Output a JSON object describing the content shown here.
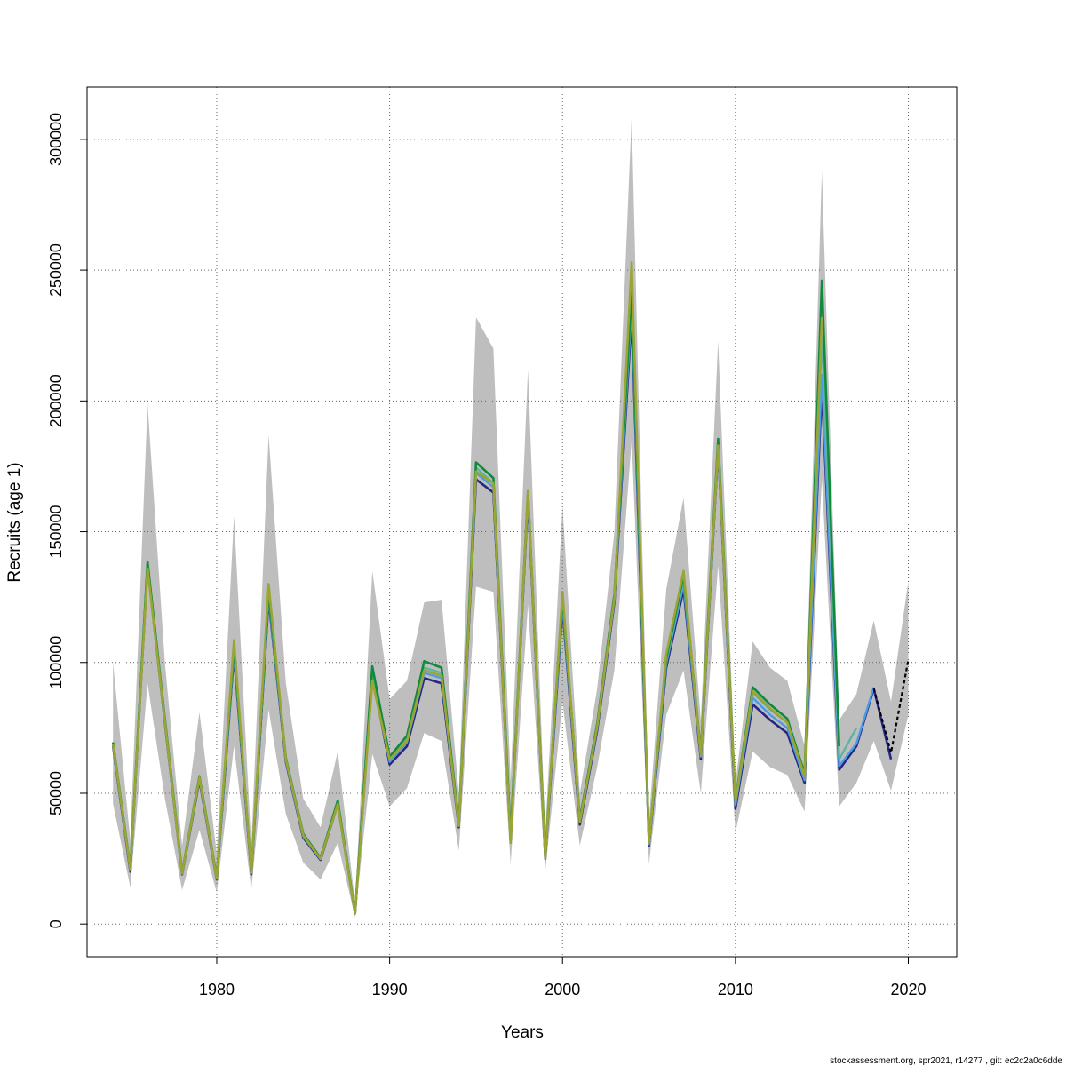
{
  "chart_data": {
    "type": "line",
    "xlabel": "Years",
    "ylabel": "Recruits (age 1)",
    "xlim": [
      1972.5,
      2022.8
    ],
    "ylim": [
      -12500,
      320000
    ],
    "x_ticks": [
      1980,
      1990,
      2000,
      2010,
      2020
    ],
    "x_tick_labels": [
      "1980",
      "1990",
      "2000",
      "2010",
      "2020"
    ],
    "y_ticks": [
      0,
      50000,
      100000,
      150000,
      200000,
      250000,
      300000
    ],
    "y_tick_labels": [
      "0",
      "50000",
      "100000",
      "150000",
      "200000",
      "250000",
      "300000"
    ],
    "grid": true,
    "legend": "none",
    "colors": {
      "band": "#bebebe",
      "grid": "#666666",
      "axis": "#000000",
      "series": [
        "#27277f",
        "#4d9be6",
        "#5fb3a0",
        "#128a3c",
        "#9aa534",
        "#000000"
      ]
    },
    "confidence_band": {
      "x": [
        1974,
        1975,
        1976,
        1977,
        1978,
        1979,
        1980,
        1981,
        1982,
        1983,
        1984,
        1985,
        1986,
        1987,
        1988,
        1989,
        1990,
        1991,
        1992,
        1993,
        1994,
        1995,
        1996,
        1997,
        1998,
        1999,
        2000,
        2001,
        2002,
        2003,
        2004,
        2005,
        2006,
        2007,
        2008,
        2009,
        2010,
        2011,
        2012,
        2013,
        2014,
        2015,
        2016,
        2017,
        2018,
        2019,
        2020
      ],
      "lower": [
        46000,
        14000,
        92000,
        48000,
        13000,
        36000,
        12000,
        68000,
        13000,
        82000,
        42000,
        23500,
        17000,
        31000,
        2500,
        65000,
        45000,
        52000,
        73000,
        70000,
        28000,
        129000,
        127000,
        23000,
        122000,
        20000,
        85000,
        30000,
        60000,
        97000,
        185000,
        23000,
        80000,
        97000,
        50000,
        137000,
        35000,
        66000,
        60000,
        57000,
        43000,
        170000,
        45000,
        54000,
        70000,
        51000,
        80000
      ],
      "upper": [
        100000,
        32000,
        199000,
        100000,
        30000,
        81000,
        27000,
        156000,
        30000,
        187000,
        92000,
        48000,
        37000,
        66000,
        8000,
        135000,
        86000,
        93000,
        123000,
        124000,
        50000,
        232000,
        220000,
        55000,
        212000,
        35000,
        160000,
        50000,
        90000,
        150000,
        309000,
        40000,
        128000,
        163000,
        78000,
        223000,
        54000,
        108000,
        98000,
        93000,
        68000,
        288000,
        78000,
        88000,
        116000,
        85000,
        131000
      ]
    },
    "series": [
      {
        "x": [
          1974,
          1975,
          1976,
          1977,
          1978,
          1979,
          1980,
          1981,
          1982,
          1983,
          1984,
          1985,
          1986,
          1987,
          1988,
          1989,
          1990,
          1991,
          1992,
          1993,
          1994,
          1995,
          1996,
          1997,
          1998,
          1999,
          2000,
          2001,
          2002,
          2003,
          2004,
          2005,
          2006,
          2007,
          2008,
          2009,
          2010,
          2011,
          2012,
          2013,
          2014,
          2015,
          2016,
          2017,
          2018,
          2019
        ],
        "values": [
          68000,
          20000,
          137000,
          77000,
          19000,
          55000,
          17000,
          103000,
          19000,
          124000,
          62000,
          33000,
          24500,
          46000,
          4000,
          95000,
          61000,
          68000,
          94000,
          92000,
          37000,
          170000,
          165000,
          32000,
          163000,
          25000,
          121000,
          38000,
          74000,
          123000,
          232000,
          30000,
          98000,
          128000,
          63000,
          182000,
          44000,
          84000,
          78000,
          73000,
          54000,
          205000,
          59000,
          68000,
          90000,
          63000
        ],
        "color": "#27277f",
        "width": 2.6,
        "dash": ""
      },
      {
        "x": [
          1974,
          1975,
          1976,
          1977,
          1978,
          1979,
          1980,
          1981,
          1982,
          1983,
          1984,
          1985,
          1986,
          1987,
          1988,
          1989,
          1990,
          1991,
          1992,
          1993,
          1994,
          1995,
          1996,
          1997,
          1998,
          1999,
          2000,
          2001,
          2002,
          2003,
          2004,
          2005,
          2006,
          2007,
          2008,
          2009,
          2010,
          2011,
          2012,
          2013,
          2014,
          2015,
          2016,
          2017,
          2018
        ],
        "values": [
          68500,
          20500,
          137500,
          77500,
          19200,
          55500,
          17300,
          104000,
          19400,
          125000,
          62500,
          33500,
          24800,
          46500,
          4100,
          96500,
          62000,
          69500,
          96000,
          94000,
          37500,
          172500,
          167000,
          32500,
          164000,
          25500,
          122500,
          39000,
          75000,
          124000,
          236000,
          30500,
          99500,
          130000,
          64000,
          183000,
          45500,
          86500,
          80000,
          75000,
          55000,
          210000,
          60500,
          69000,
          90500
        ],
        "color": "#4d9be6",
        "width": 2.4,
        "dash": ""
      },
      {
        "x": [
          1974,
          1975,
          1976,
          1977,
          1978,
          1979,
          1980,
          1981,
          1982,
          1983,
          1984,
          1985,
          1986,
          1987,
          1988,
          1989,
          1990,
          1991,
          1992,
          1993,
          1994,
          1995,
          1996,
          1997,
          1998,
          1999,
          2000,
          2001,
          2002,
          2003,
          2004,
          2005,
          2006,
          2007,
          2008,
          2009,
          2010,
          2011,
          2012,
          2013,
          2014,
          2015,
          2016,
          2017
        ],
        "values": [
          69000,
          21000,
          138000,
          78000,
          19500,
          56000,
          17500,
          105000,
          19700,
          126000,
          63000,
          34000,
          25000,
          46800,
          4200,
          97500,
          63000,
          70500,
          98000,
          96000,
          38000,
          174500,
          168500,
          33000,
          165000,
          26000,
          124000,
          39500,
          76000,
          125000,
          240000,
          31000,
          100500,
          132000,
          65000,
          184000,
          46500,
          88500,
          82000,
          77000,
          56500,
          225000,
          63000,
          75000
        ],
        "color": "#5fb3a0",
        "width": 2.4,
        "dash": ""
      },
      {
        "x": [
          1974,
          1975,
          1976,
          1977,
          1978,
          1979,
          1980,
          1981,
          1982,
          1983,
          1984,
          1985,
          1986,
          1987,
          1988,
          1989,
          1990,
          1991,
          1992,
          1993,
          1994,
          1995,
          1996,
          1997,
          1998,
          1999,
          2000,
          2001,
          2002,
          2003,
          2004,
          2005,
          2006,
          2007,
          2008,
          2009,
          2010,
          2011,
          2012,
          2013,
          2014,
          2015,
          2016
        ],
        "values": [
          69500,
          21500,
          138500,
          78500,
          19700,
          56500,
          17800,
          106000,
          20000,
          127000,
          63500,
          34500,
          25300,
          47200,
          4300,
          98500,
          64000,
          72000,
          100500,
          98000,
          38500,
          176500,
          170500,
          33500,
          165500,
          26500,
          125000,
          40000,
          76500,
          126000,
          242000,
          31500,
          101500,
          133500,
          65500,
          185500,
          47500,
          90500,
          84000,
          78500,
          57500,
          246000,
          68000
        ],
        "color": "#128a3c",
        "width": 2.6,
        "dash": ""
      },
      {
        "x": [
          1974,
          1975,
          1976,
          1977,
          1978,
          1979,
          1980,
          1981,
          1982,
          1983,
          1984,
          1985,
          1986,
          1987,
          1988,
          1989,
          1990,
          1991,
          1992,
          1993,
          1994,
          1995,
          1996,
          1997,
          1998,
          1999,
          2000,
          2001,
          2002,
          2003,
          2004,
          2005,
          2006,
          2007,
          2008,
          2009,
          2010,
          2011,
          2012,
          2013,
          2014,
          2015
        ],
        "values": [
          69000,
          21000,
          136000,
          77500,
          19300,
          56000,
          17400,
          108500,
          19600,
          130000,
          63000,
          34000,
          24900,
          46000,
          4000,
          93000,
          63000,
          70000,
          97000,
          95000,
          37500,
          173000,
          168500,
          31000,
          165500,
          25200,
          127000,
          39000,
          75500,
          124500,
          253000,
          31000,
          103000,
          135000,
          64500,
          183000,
          47000,
          89000,
          82500,
          77000,
          56500,
          232000
        ],
        "color": "#9aa534",
        "width": 2.6,
        "dash": ""
      },
      {
        "x": [
          2018,
          2019,
          2020
        ],
        "values": [
          90000,
          65500,
          101000
        ],
        "color": "#000000",
        "width": 2.2,
        "dash": "4,3"
      }
    ]
  },
  "footer": {
    "credit": "stockassessment.org, spr2021, r14277 , git: ec2c2a0c6dde"
  }
}
